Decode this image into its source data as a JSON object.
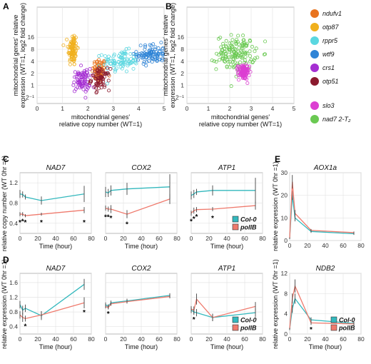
{
  "colors": {
    "col0": "#33b8bd",
    "polib": "#ef7a6d",
    "grid": "#e4e4e4",
    "panel_border": "#a9a9a9",
    "errbar": "#444444"
  },
  "panel_labels": [
    "A",
    "B",
    "C",
    "D",
    "E"
  ],
  "chart_data": [
    {
      "panel": "A",
      "type": "scatter",
      "xlabel": "mitochondrial genes' relative copy number (WT=1)",
      "ylabel": "mitochondrial genes' relative expression (WT=1, log2 fold change)",
      "xlim": [
        0,
        5
      ],
      "ylim": [
        -1.5,
        6.5
      ],
      "xticks": [
        "0",
        "1",
        "2",
        "3",
        "4",
        "5"
      ],
      "yticks": [
        {
          "v": -1,
          "label": "2⁻¹"
        },
        {
          "v": 0,
          "label": "1"
        },
        {
          "v": 1,
          "label": "2"
        },
        {
          "v": 2,
          "label": "4"
        },
        {
          "v": 3,
          "label": "8"
        },
        {
          "v": 4,
          "label": "16"
        }
      ],
      "grid": true,
      "series": [
        {
          "name": "ndufv1",
          "color": "#e8731e",
          "cx": 2.45,
          "cy": 1.2,
          "sx": 0.14,
          "sy": 1.0,
          "n": 70
        },
        {
          "name": "otp87",
          "color": "#f0b01d",
          "cx": 1.4,
          "cy": 3.0,
          "sx": 0.09,
          "sy": 1.3,
          "n": 90
        },
        {
          "name": "rppr5",
          "color": "#5ad7e0",
          "cx": 3.3,
          "cy": 2.0,
          "sx": 0.35,
          "sy": 0.8,
          "n": 90
        },
        {
          "name": "wtf9",
          "color": "#2f84d6",
          "cx": 4.5,
          "cy": 2.6,
          "sx": 0.28,
          "sy": 0.75,
          "n": 90
        },
        {
          "name": "crs1",
          "color": "#a52fd2",
          "cx": 1.75,
          "cy": 0.4,
          "sx": 0.17,
          "sy": 0.9,
          "n": 80
        },
        {
          "name": "otp51",
          "color": "#8b1a2e",
          "cx": 2.5,
          "cy": 0.5,
          "sx": 0.18,
          "sy": 0.8,
          "n": 70
        }
      ]
    },
    {
      "panel": "B",
      "type": "scatter",
      "xlabel": "mitochondrial genes' relative copy number (WT=1)",
      "ylabel": "mitochondrial genes' relative expression (WT=1, log2 fold change)",
      "xlim": [
        0,
        5
      ],
      "ylim": [
        -1.5,
        6.5
      ],
      "xticks": [
        "0",
        "1",
        "2",
        "3",
        "4",
        "5"
      ],
      "yticks": [
        {
          "v": -1,
          "label": "2⁻¹"
        },
        {
          "v": 0,
          "label": "1"
        },
        {
          "v": 1,
          "label": "2"
        },
        {
          "v": 2,
          "label": "4"
        },
        {
          "v": 3,
          "label": "8"
        },
        {
          "v": 4,
          "label": "16"
        }
      ],
      "grid": true,
      "series": [
        {
          "name": "nad7 2-T₂",
          "color": "#6ac952",
          "cx": 2.3,
          "cy": 2.7,
          "sx": 0.45,
          "sy": 1.3,
          "n": 150
        },
        {
          "name": "slo3",
          "color": "#dc3fd2",
          "cx": 2.65,
          "cy": 1.1,
          "sx": 0.13,
          "sy": 0.55,
          "n": 110
        }
      ]
    },
    {
      "panel": "C",
      "type": "line",
      "title": "NAD7",
      "ylabel": "relative copy number (WT 0hr =1)",
      "xlabel": "Time (hour)",
      "xlim": [
        0,
        80
      ],
      "ylim": [
        0.2,
        1.4
      ],
      "xticks": [
        0,
        20,
        40,
        60,
        80
      ],
      "yticks": [
        0.4,
        0.8,
        1.2
      ],
      "show_y": true,
      "x": [
        0,
        3,
        6,
        24,
        72
      ],
      "series": [
        {
          "name": "Col-0",
          "color": "#33b8bd",
          "values": [
            0.98,
            0.97,
            0.92,
            0.85,
            0.98
          ],
          "err": [
            0.08,
            0.06,
            0.05,
            0.08,
            0.16
          ]
        },
        {
          "name": "polIB",
          "color": "#ef7a6d",
          "values": [
            0.58,
            0.58,
            0.55,
            0.58,
            0.66
          ],
          "err": [
            0.04,
            0.04,
            0.03,
            0.03,
            0.06
          ]
        }
      ],
      "stars": [
        0,
        3,
        6,
        24,
        72
      ]
    },
    {
      "panel": "C",
      "type": "line",
      "title": "COX2",
      "xlabel": "Time (hour)",
      "xlim": [
        0,
        80
      ],
      "ylim": [
        0.2,
        1.4
      ],
      "xticks": [
        0,
        20,
        40,
        60,
        80
      ],
      "yticks": [
        0.4,
        0.8,
        1.2
      ],
      "show_y": false,
      "x": [
        0,
        3,
        6,
        24,
        72
      ],
      "series": [
        {
          "name": "Col-0",
          "color": "#33b8bd",
          "values": [
            1.02,
            1.0,
            1.05,
            1.08,
            1.12
          ],
          "err": [
            0.1,
            0.08,
            0.1,
            0.12,
            0.25
          ]
        },
        {
          "name": "polIB",
          "color": "#ef7a6d",
          "values": [
            0.7,
            0.68,
            0.68,
            0.58,
            0.88
          ],
          "err": [
            0.05,
            0.05,
            0.08,
            0.08,
            0.1
          ]
        }
      ],
      "stars": [
        0,
        3,
        6,
        24
      ]
    },
    {
      "panel": "C",
      "type": "line",
      "title": "ATP1",
      "xlabel": "Time (hour)",
      "xlim": [
        0,
        80
      ],
      "ylim": [
        0.2,
        1.4
      ],
      "xticks": [
        0,
        20,
        40,
        60,
        80
      ],
      "yticks": [
        0.4,
        0.8,
        1.2
      ],
      "show_y": false,
      "x": [
        0,
        3,
        6,
        24,
        72
      ],
      "series": [
        {
          "name": "Col-0",
          "color": "#33b8bd",
          "values": [
            0.95,
            0.98,
            1.02,
            1.05,
            1.05
          ],
          "err": [
            0.08,
            0.08,
            0.06,
            0.1,
            0.25
          ]
        },
        {
          "name": "polIB",
          "color": "#ef7a6d",
          "values": [
            0.6,
            0.65,
            0.67,
            0.68,
            0.75
          ],
          "err": [
            0.05,
            0.06,
            0.05,
            0.04,
            0.08
          ]
        }
      ],
      "stars": [
        0,
        3,
        6,
        24
      ],
      "legend": [
        "Col-0",
        "polIB"
      ]
    },
    {
      "panel": "D",
      "type": "line",
      "title": "NAD7",
      "ylabel": "relative expression (WT 0hr =1)",
      "xlabel": "Time (hour)",
      "xlim": [
        0,
        80
      ],
      "ylim": [
        0.2,
        1.85
      ],
      "xticks": [
        0,
        20,
        40,
        60,
        80
      ],
      "yticks": [
        0.4,
        0.8,
        1.2,
        1.6
      ],
      "show_y": true,
      "x": [
        0,
        3,
        6,
        24,
        72
      ],
      "series": [
        {
          "name": "Col-0",
          "color": "#33b8bd",
          "values": [
            1.0,
            0.85,
            0.9,
            0.7,
            1.55
          ],
          "err": [
            0.1,
            0.12,
            0.1,
            0.12,
            0.15
          ]
        },
        {
          "name": "polIB",
          "color": "#ef7a6d",
          "values": [
            0.72,
            0.65,
            0.62,
            0.72,
            1.05
          ],
          "err": [
            0.1,
            0.12,
            0.08,
            0.1,
            0.15
          ]
        }
      ],
      "stars": [
        6,
        72
      ]
    },
    {
      "panel": "D",
      "type": "line",
      "title": "COX2",
      "xlabel": "Time (hour)",
      "xlim": [
        0,
        80
      ],
      "ylim": [
        0.2,
        1.85
      ],
      "xticks": [
        0,
        20,
        40,
        60,
        80
      ],
      "yticks": [
        0.4,
        0.8,
        1.2,
        1.6
      ],
      "show_y": false,
      "x": [
        0,
        3,
        6,
        24,
        72
      ],
      "series": [
        {
          "name": "Col-0",
          "color": "#33b8bd",
          "values": [
            1.0,
            0.95,
            1.05,
            1.1,
            1.25
          ],
          "err": [
            0.06,
            0.06,
            0.06,
            0.06,
            0.06
          ]
        },
        {
          "name": "polIB",
          "color": "#ef7a6d",
          "values": [
            0.95,
            0.92,
            1.02,
            1.08,
            1.22
          ],
          "err": [
            0.05,
            0.05,
            0.05,
            0.05,
            0.05
          ]
        }
      ],
      "stars": [
        3
      ]
    },
    {
      "panel": "D",
      "type": "line",
      "title": "ATP1",
      "xlabel": "Time (hour)",
      "xlim": [
        0,
        80
      ],
      "ylim": [
        0.2,
        1.85
      ],
      "xticks": [
        0,
        20,
        40,
        60,
        80
      ],
      "yticks": [
        0.4,
        0.8,
        1.2,
        1.6
      ],
      "show_y": false,
      "x": [
        0,
        3,
        6,
        24,
        72
      ],
      "series": [
        {
          "name": "Col-0",
          "color": "#33b8bd",
          "values": [
            0.85,
            0.8,
            0.78,
            0.65,
            0.78
          ],
          "err": [
            0.08,
            0.08,
            0.1,
            0.1,
            0.12
          ]
        },
        {
          "name": "polIB",
          "color": "#ef7a6d",
          "values": [
            0.88,
            0.85,
            1.15,
            0.65,
            0.95
          ],
          "err": [
            0.08,
            0.1,
            0.15,
            0.1,
            0.12
          ]
        }
      ],
      "stars": [
        3
      ],
      "legend": [
        "Col-0",
        "polIB"
      ]
    },
    {
      "panel": "E",
      "type": "line",
      "title": "AOX1a",
      "ylabel": "relative expression (WT 0hr =1)",
      "xlabel": "",
      "xlim": [
        0,
        80
      ],
      "ylim": [
        0,
        30
      ],
      "xticks": [
        0,
        20,
        40,
        60,
        80
      ],
      "yticks": [
        0,
        10,
        20,
        30
      ],
      "show_y": true,
      "x": [
        0,
        3,
        6,
        24,
        72
      ],
      "series": [
        {
          "name": "Col-0",
          "color": "#33b8bd",
          "values": [
            1.0,
            20.0,
            10.0,
            4.0,
            3.0
          ],
          "err": [
            0.3,
            2.0,
            1.5,
            0.6,
            0.5
          ]
        },
        {
          "name": "polIB",
          "color": "#ef7a6d",
          "values": [
            1.0,
            26.0,
            12.0,
            4.5,
            3.5
          ],
          "err": [
            0.3,
            3.0,
            1.5,
            0.6,
            0.5
          ]
        }
      ],
      "stars": []
    },
    {
      "panel": "E",
      "type": "line",
      "title": "NDB2",
      "ylabel": "relative expression (WT 0hr =1)",
      "xlabel": "Time (hour)",
      "xlim": [
        0,
        80
      ],
      "ylim": [
        0,
        12
      ],
      "xticks": [
        0,
        20,
        40,
        60,
        80
      ],
      "yticks": [
        0,
        4,
        8,
        12
      ],
      "show_y": true,
      "x": [
        0,
        3,
        6,
        24,
        72
      ],
      "series": [
        {
          "name": "Col-0",
          "color": "#33b8bd",
          "values": [
            1.0,
            5.0,
            7.0,
            2.8,
            2.1
          ],
          "err": [
            0.2,
            0.8,
            1.0,
            0.5,
            0.3
          ]
        },
        {
          "name": "polIB",
          "color": "#ef7a6d",
          "values": [
            1.0,
            7.0,
            9.5,
            2.2,
            2.0
          ],
          "err": [
            0.2,
            1.0,
            1.3,
            0.4,
            0.3
          ]
        }
      ],
      "stars": [
        24
      ],
      "legend": [
        "Col-0",
        "polIB"
      ]
    }
  ],
  "legend_ab": [
    "ndufv1",
    "otp87",
    "rppr5",
    "wtf9",
    "crs1",
    "otp51",
    "slo3",
    "nad7 2-T₂"
  ]
}
